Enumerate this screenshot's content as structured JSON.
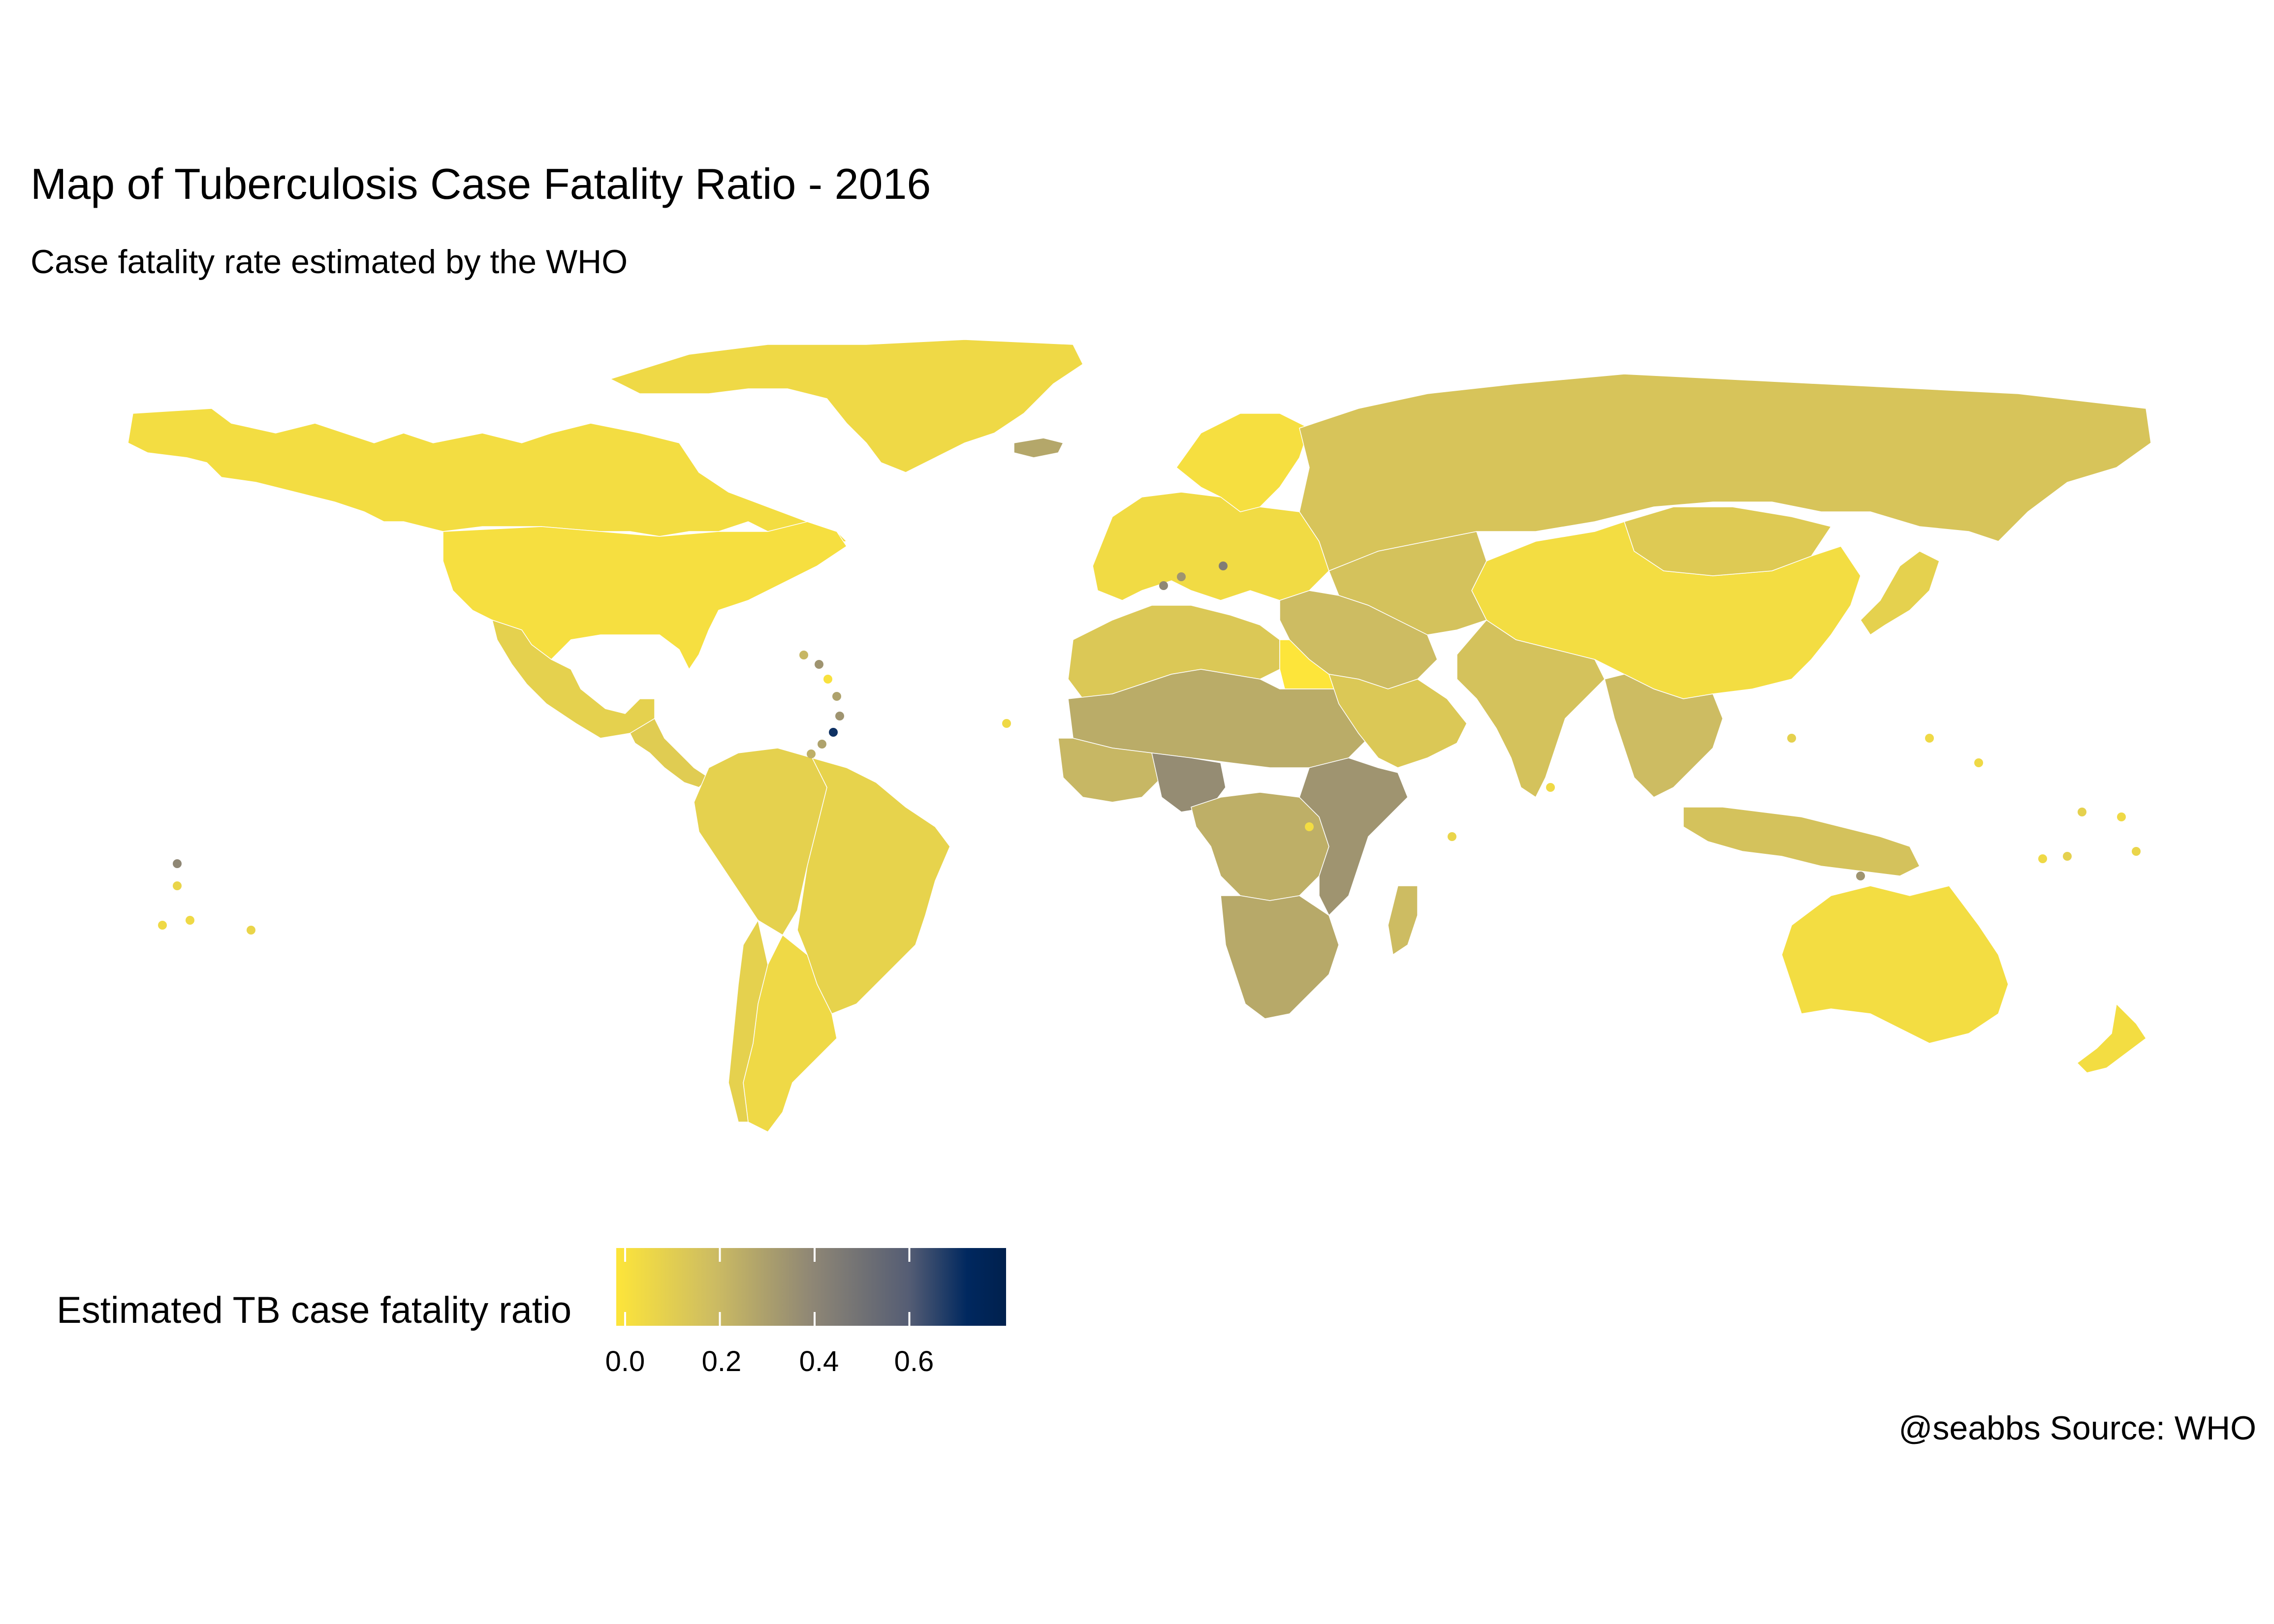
{
  "title": "Map of Tuberculosis Case Fatality Ratio - 2016",
  "subtitle": "Case fatality rate estimated by the WHO",
  "caption": "@seabbs Source: WHO",
  "legend": {
    "title": "Estimated TB case fatality ratio",
    "ticks": [
      "0.0",
      "0.2",
      "0.4",
      "0.6"
    ],
    "tick_values": [
      0.0,
      0.2,
      0.4,
      0.6
    ],
    "range": [
      0.0,
      0.8
    ],
    "colors": [
      "#fde53a",
      "#cdbc62",
      "#8f8775",
      "#555d74",
      "#00285f",
      "#00204d"
    ]
  },
  "map_data": {
    "type": "choropleth",
    "projection": "equirectangular",
    "regions": [
      {
        "name": "Canada",
        "value": 0.04
      },
      {
        "name": "United States",
        "value": 0.03
      },
      {
        "name": "Greenland",
        "value": 0.06
      },
      {
        "name": "Mexico",
        "value": 0.1
      },
      {
        "name": "Central America",
        "value": 0.12
      },
      {
        "name": "Brazil",
        "value": 0.09
      },
      {
        "name": "Andean South America",
        "value": 0.1
      },
      {
        "name": "Argentina",
        "value": 0.06
      },
      {
        "name": "Chile",
        "value": 0.1
      },
      {
        "name": "Europe",
        "value": 0.05
      },
      {
        "name": "Scandinavia",
        "value": 0.03
      },
      {
        "name": "Russia",
        "value": 0.16
      },
      {
        "name": "China",
        "value": 0.04
      },
      {
        "name": "Mongolia",
        "value": 0.13
      },
      {
        "name": "Central Asia",
        "value": 0.17
      },
      {
        "name": "India",
        "value": 0.17
      },
      {
        "name": "Southeast Asia",
        "value": 0.2
      },
      {
        "name": "Indonesia",
        "value": 0.17
      },
      {
        "name": "Japan",
        "value": 0.1
      },
      {
        "name": "Australia",
        "value": 0.04
      },
      {
        "name": "New Zealand",
        "value": 0.04
      },
      {
        "name": "North Africa",
        "value": 0.14
      },
      {
        "name": "Egypt",
        "value": 0.0
      },
      {
        "name": "Sahel",
        "value": 0.26
      },
      {
        "name": "West Africa",
        "value": 0.22
      },
      {
        "name": "Nigeria",
        "value": 0.38
      },
      {
        "name": "Central Africa",
        "value": 0.25
      },
      {
        "name": "East Africa",
        "value": 0.35
      },
      {
        "name": "Southern Africa",
        "value": 0.27
      },
      {
        "name": "Madagascar",
        "value": 0.2
      },
      {
        "name": "Middle East",
        "value": 0.2
      },
      {
        "name": "Arabian Peninsula",
        "value": 0.14
      },
      {
        "name": "Svalbard",
        "value": 0.28
      }
    ]
  }
}
